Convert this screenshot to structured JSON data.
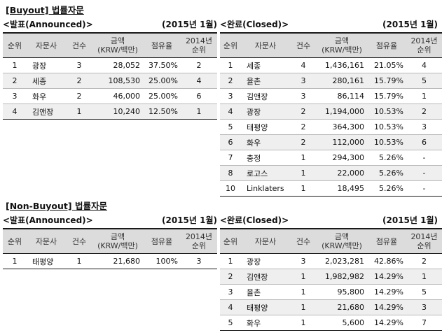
{
  "buyout": {
    "title": "[Buyout] 법률자문",
    "announced": {
      "label": "<발표(Announced)>",
      "period": "(2015년 1월)",
      "headers": [
        "순위",
        "자문사",
        "건수",
        "금액\n(KRW/백만)",
        "점유율",
        "2014년\n순위"
      ],
      "rows": [
        [
          "1",
          "광장",
          "3",
          "28,052",
          "37.50%",
          "2"
        ],
        [
          "2",
          "세종",
          "2",
          "108,530",
          "25.00%",
          "4"
        ],
        [
          "3",
          "화우",
          "2",
          "46,000",
          "25.00%",
          "6"
        ],
        [
          "4",
          "김앤장",
          "1",
          "10,240",
          "12.50%",
          "1"
        ]
      ]
    },
    "closed": {
      "label": "<완료(Closed)>",
      "period": "(2015년 1월)",
      "headers": [
        "순위",
        "자문사",
        "건수",
        "금액\n(KRW/백만)",
        "점유율",
        "2014년\n순위"
      ],
      "rows": [
        [
          "1",
          "세종",
          "4",
          "1,436,161",
          "21.05%",
          "4"
        ],
        [
          "2",
          "율촌",
          "3",
          "280,161",
          "15.79%",
          "5"
        ],
        [
          "3",
          "김앤장",
          "3",
          "86,114",
          "15.79%",
          "1"
        ],
        [
          "4",
          "광장",
          "2",
          "1,194,000",
          "10.53%",
          "2"
        ],
        [
          "5",
          "태평양",
          "2",
          "364,300",
          "10.53%",
          "3"
        ],
        [
          "6",
          "화우",
          "2",
          "112,000",
          "10.53%",
          "6"
        ],
        [
          "7",
          "충정",
          "1",
          "294,300",
          "5.26%",
          "-"
        ],
        [
          "8",
          "로고스",
          "1",
          "22,000",
          "5.26%",
          "-"
        ],
        [
          "10",
          "Linklaters",
          "1",
          "18,495",
          "5.26%",
          "-"
        ]
      ]
    }
  },
  "non_buyout": {
    "title": "[Non-Buyout] 법률자문",
    "announced": {
      "label": "<발표(Announced)>",
      "period": "(2015년 1월)",
      "headers": [
        "순위",
        "자문사",
        "건수",
        "금액\n(KRW/백만)",
        "점유율",
        "2014년\n순위"
      ],
      "rows": [
        [
          "1",
          "태평양",
          "1",
          "21,680",
          "100%",
          "3"
        ]
      ]
    },
    "closed": {
      "label": "<완료(Closed)>",
      "period": "(2015년 1월)",
      "headers": [
        "순위",
        "자문사",
        "건수",
        "금액\n(KRW/백만)",
        "점유율",
        "2014년\n순위"
      ],
      "rows": [
        [
          "1",
          "광장",
          "3",
          "2,023,281",
          "42.86%",
          "2"
        ],
        [
          "2",
          "김앤장",
          "1",
          "1,982,982",
          "14.29%",
          "1"
        ],
        [
          "3",
          "율촌",
          "1",
          "95,800",
          "14.29%",
          "5"
        ],
        [
          "4",
          "태평양",
          "1",
          "21,680",
          "14.29%",
          "3"
        ],
        [
          "5",
          "화우",
          "1",
          "5,600",
          "14.29%",
          "7"
        ]
      ]
    }
  }
}
